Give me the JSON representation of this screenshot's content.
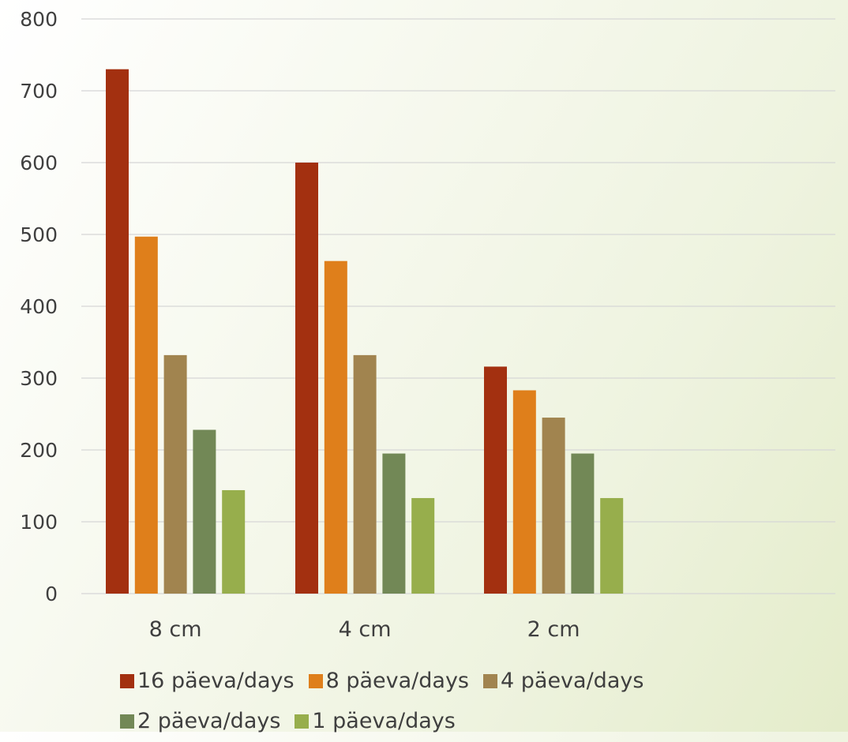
{
  "chart_data": {
    "type": "bar",
    "categories": [
      "8 cm",
      "4 cm",
      "2 cm"
    ],
    "series": [
      {
        "name": "16 päeva/days",
        "color": "#a33010",
        "values": [
          730,
          600,
          316
        ]
      },
      {
        "name": "8 päeva/days",
        "color": "#df7f1b",
        "values": [
          497,
          463,
          283
        ]
      },
      {
        "name": "4 päeva/days",
        "color": "#a1844f",
        "values": [
          332,
          332,
          245
        ]
      },
      {
        "name": "2 päeva/days",
        "color": "#728856",
        "values": [
          228,
          195,
          195
        ]
      },
      {
        "name": "1 päeva/days",
        "color": "#97ae4c",
        "values": [
          144,
          133,
          133
        ]
      }
    ],
    "yticks": [
      "0",
      "100",
      "200",
      "300",
      "400",
      "500",
      "600",
      "700",
      "800"
    ],
    "ylim": [
      0,
      800
    ],
    "title": "",
    "xlabel": "",
    "ylabel": "",
    "grid": true,
    "legend": "bottom"
  }
}
